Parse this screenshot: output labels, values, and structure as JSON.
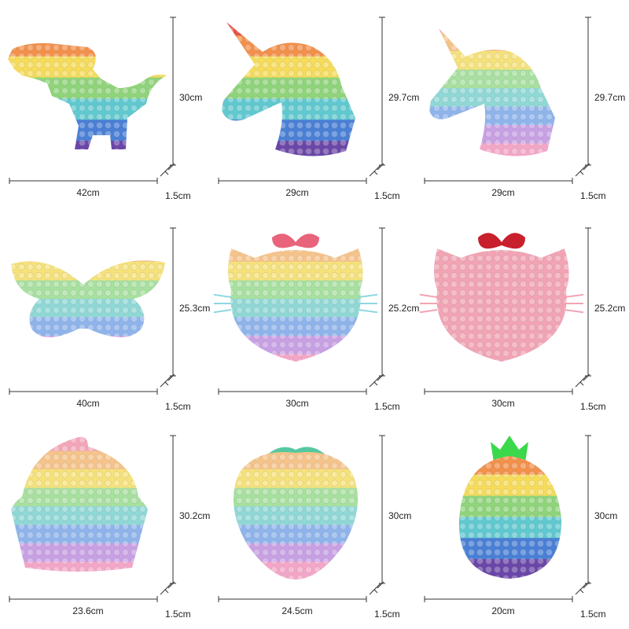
{
  "items": [
    {
      "height": "30cm",
      "width": "42cm",
      "depth": "1.5cm"
    },
    {
      "height": "29.7cm",
      "width": "29cm",
      "depth": "1.5cm"
    },
    {
      "height": "29.7cm",
      "width": "29cm",
      "depth": "1.5cm"
    },
    {
      "height": "25.3cm",
      "width": "40cm",
      "depth": "1.5cm"
    },
    {
      "height": "25.2cm",
      "width": "30cm",
      "depth": "1.5cm"
    },
    {
      "height": "25.2cm",
      "width": "30cm",
      "depth": "1.5cm"
    },
    {
      "height": "30.2cm",
      "width": "23.6cm",
      "depth": "1.5cm"
    },
    {
      "height": "30cm",
      "width": "24.5cm",
      "depth": "1.5cm"
    },
    {
      "height": "30cm",
      "width": "20cm",
      "depth": "1.5cm"
    }
  ]
}
